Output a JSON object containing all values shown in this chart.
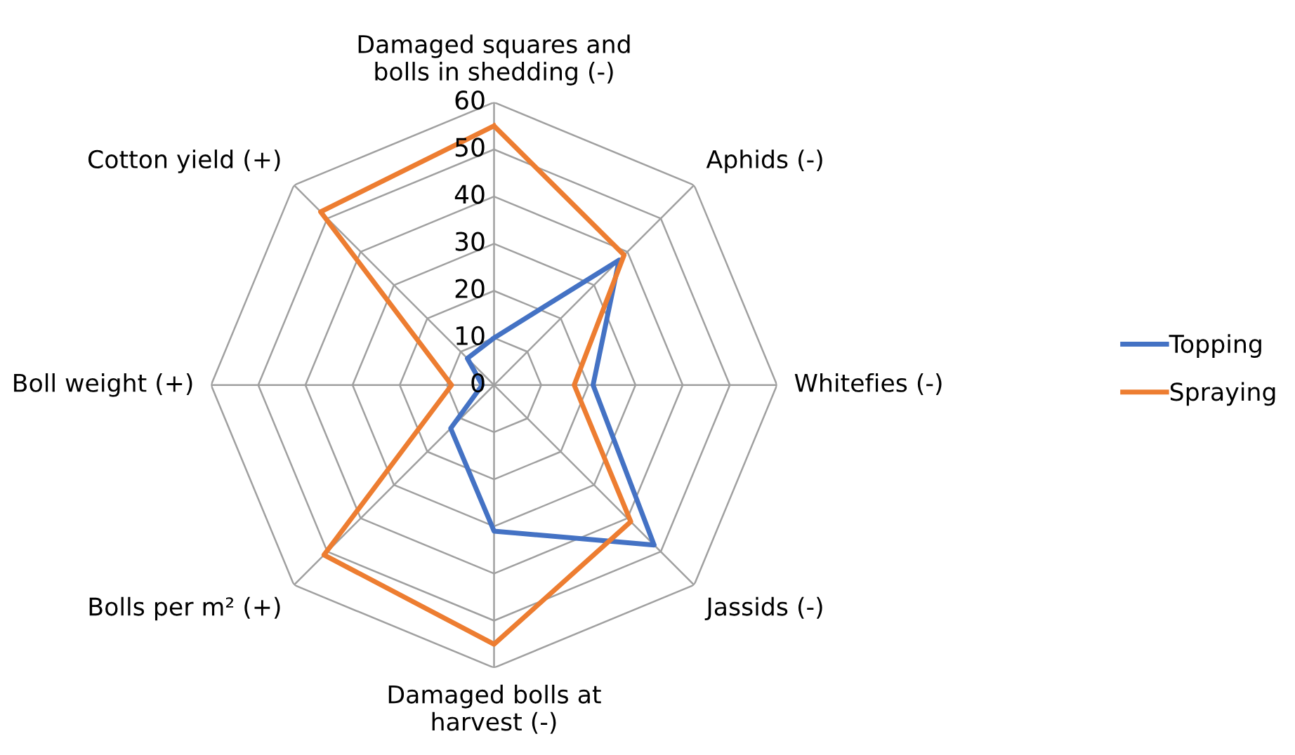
{
  "chart_data": {
    "type": "radar",
    "categories": [
      "Damaged squares and\nbolls in shedding (-)",
      "Aphids (-)",
      "Whitefies (-)",
      "Jassids (-)",
      "Damaged bolls at\nharvest (-)",
      "Bolls per m² (+)",
      "Boll weight (+)",
      "Cotton yield (+)"
    ],
    "series": [
      {
        "name": "Topping",
        "color": "#4472c4",
        "values": [
          10,
          37.5,
          21,
          48,
          31,
          13,
          2.5,
          8
        ]
      },
      {
        "name": "Spraying",
        "color": "#ed7d31",
        "values": [
          55,
          39,
          17,
          41,
          55,
          51,
          9,
          52
        ]
      }
    ],
    "ylim": [
      0,
      60
    ],
    "yticks": [
      0,
      10,
      20,
      30,
      40,
      50,
      60
    ],
    "legend": "right",
    "grid": true
  }
}
